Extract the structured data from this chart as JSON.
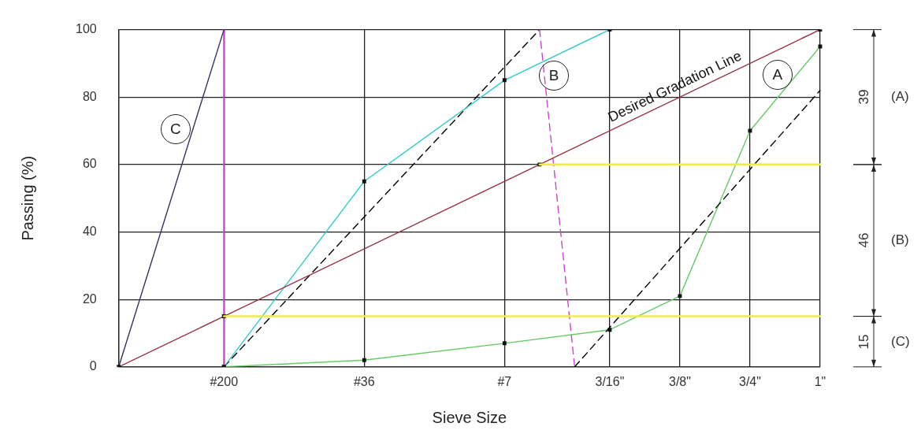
{
  "chart_data": {
    "type": "line",
    "xlabel": "Sieve Size",
    "ylabel": "Passing (%)",
    "categories": [
      null,
      null,
      null,
      "#200",
      null,
      null,
      null,
      "#36",
      null,
      null,
      null,
      "#7",
      null,
      null,
      "3/16\"",
      null,
      "3/8\"",
      null,
      "3/4\"",
      null,
      "1\""
    ],
    "ylim": [
      0,
      100
    ],
    "yticks": [
      0,
      20,
      40,
      60,
      80,
      100
    ],
    "grid": true,
    "legend": false,
    "series": [
      {
        "name": "Desired Gradation Line",
        "color": "#993344",
        "values": [
          0,
          null,
          null,
          15,
          null,
          null,
          null,
          null,
          null,
          null,
          null,
          null,
          60,
          null,
          null,
          null,
          null,
          null,
          null,
          null,
          100
        ],
        "marker": "square"
      },
      {
        "name": "C",
        "color": "#333366",
        "values": [
          0,
          null,
          null,
          100,
          null,
          null,
          null,
          null,
          null,
          null,
          null,
          null,
          null,
          null,
          null,
          null,
          null,
          null,
          null,
          null,
          null
        ]
      },
      {
        "color": "#33cccc",
        "name": "B",
        "values": [
          null,
          null,
          null,
          0,
          null,
          null,
          null,
          55,
          null,
          null,
          null,
          85,
          null,
          null,
          100,
          null,
          null,
          null,
          null,
          null,
          null
        ],
        "marker": "square"
      },
      {
        "color": "#cc44cc",
        "values": [
          null,
          null,
          null,
          null,
          null,
          null,
          null,
          null,
          null,
          null,
          null,
          null,
          100,
          0,
          null,
          null,
          null,
          null,
          null,
          null,
          null
        ],
        "line_style": "dashed"
      },
      {
        "color": "#000000",
        "values": [
          null,
          null,
          null,
          0,
          null,
          null,
          null,
          null,
          null,
          null,
          null,
          null,
          100,
          null,
          null,
          null,
          null,
          null,
          null,
          null,
          null
        ],
        "line_style": "dashed"
      },
      {
        "color": "#000000",
        "values": [
          null,
          null,
          null,
          null,
          null,
          null,
          null,
          null,
          null,
          null,
          null,
          null,
          null,
          0,
          null,
          null,
          null,
          null,
          null,
          null,
          82
        ],
        "line_style": "dashed"
      },
      {
        "name": "A",
        "color": "#66cc66",
        "values": [
          null,
          null,
          null,
          0,
          null,
          null,
          null,
          2,
          null,
          null,
          null,
          7,
          null,
          null,
          11,
          null,
          21,
          null,
          70,
          null,
          95
        ],
        "marker": "square"
      },
      {
        "color": "#eeee44",
        "values": [
          null,
          null,
          null,
          null,
          null,
          null,
          null,
          null,
          null,
          null,
          null,
          null,
          60,
          null,
          null,
          null,
          null,
          null,
          null,
          null,
          60
        ]
      },
      {
        "color": "#eeee44",
        "values": [
          null,
          null,
          null,
          15,
          null,
          null,
          null,
          null,
          null,
          null,
          null,
          null,
          null,
          null,
          null,
          null,
          null,
          null,
          null,
          null,
          15
        ]
      }
    ],
    "ref_lines": [
      {
        "axis": "x",
        "value": "#200",
        "color": "#cc44cc"
      }
    ],
    "annotations": [
      "39",
      "(A)",
      "46",
      "(B)",
      "15",
      "(C)"
    ]
  }
}
